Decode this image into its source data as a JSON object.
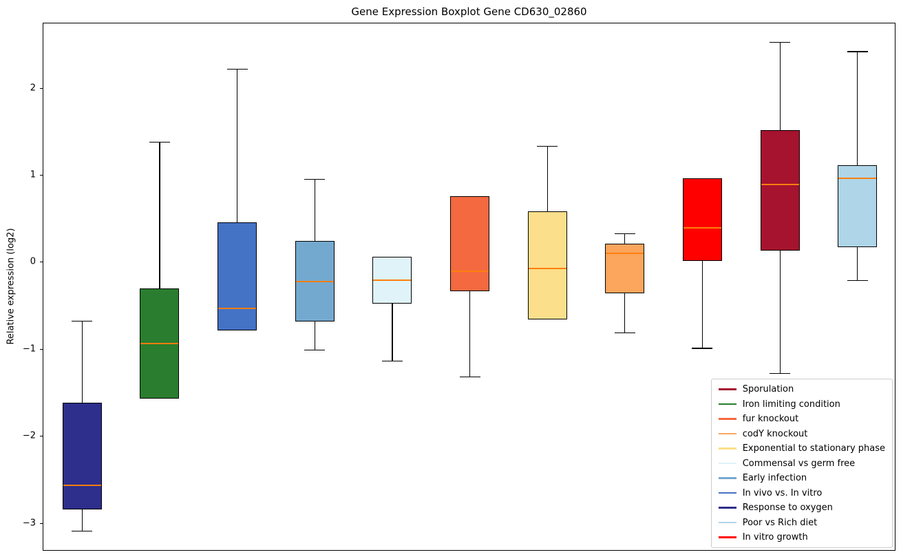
{
  "chart_data": {
    "type": "boxplot",
    "title": "Gene Expression Boxplot Gene CD630_02860",
    "xlabel": "",
    "ylabel": "Relative expression (log2)",
    "ylim": [
      -3.32,
      2.75
    ],
    "grid": false,
    "legend_position": "lower right",
    "median_color": "#ff7f0e",
    "yticks": [
      {
        "value": -3,
        "label": "−3"
      },
      {
        "value": -2,
        "label": "−2"
      },
      {
        "value": -1,
        "label": "−1"
      },
      {
        "value": 0,
        "label": "0"
      },
      {
        "value": 1,
        "label": "1"
      },
      {
        "value": 2,
        "label": "2"
      }
    ],
    "boxes": [
      {
        "label": "Response to oxygen",
        "color": "#2e2e8c",
        "whisker_low": -3.08,
        "q1": -2.84,
        "median": -2.56,
        "q3": -1.61,
        "whisker_high": -0.67
      },
      {
        "label": "Iron limiting condition",
        "color": "#2a7d2e",
        "whisker_low": -1.56,
        "q1": -1.56,
        "median": -0.93,
        "q3": -0.3,
        "whisker_high": 1.39
      },
      {
        "label": "In vivo vs. In vitro",
        "color": "#4472c4",
        "whisker_low": -0.78,
        "q1": -0.78,
        "median": -0.53,
        "q3": 0.46,
        "whisker_high": 2.23
      },
      {
        "label": "Early infection",
        "color": "#74a9cf",
        "whisker_low": -1.0,
        "q1": -0.68,
        "median": -0.22,
        "q3": 0.25,
        "whisker_high": 0.96
      },
      {
        "label": "Commensal vs germ free",
        "color": "#dff3f8",
        "whisker_low": -1.13,
        "q1": -0.47,
        "median": -0.2,
        "q3": 0.07,
        "whisker_high": 0.07
      },
      {
        "label": "fur knockout",
        "color": "#f4693f",
        "whisker_low": -1.31,
        "q1": -0.33,
        "median": -0.1,
        "q3": 0.76,
        "whisker_high": 0.76
      },
      {
        "label": "Exponential to stationary phase",
        "color": "#fcdf8b",
        "whisker_low": -0.65,
        "q1": -0.65,
        "median": -0.07,
        "q3": 0.59,
        "whisker_high": 1.34
      },
      {
        "label": "codY knockout",
        "color": "#fba55d",
        "whisker_low": -0.8,
        "q1": -0.35,
        "median": 0.11,
        "q3": 0.22,
        "whisker_high": 0.34
      },
      {
        "label": "In vitro growth",
        "color": "#ff0000",
        "whisker_low": -0.98,
        "q1": 0.02,
        "median": 0.4,
        "q3": 0.97,
        "whisker_high": 0.97
      },
      {
        "label": "Sporulation",
        "color": "#a5132e",
        "whisker_low": -1.27,
        "q1": 0.14,
        "median": 0.9,
        "q3": 1.52,
        "whisker_high": 2.54
      },
      {
        "label": "Poor vs Rich diet",
        "color": "#aed6e8",
        "whisker_low": -0.2,
        "q1": 0.18,
        "median": 0.97,
        "q3": 1.12,
        "whisker_high": 2.43
      }
    ],
    "legend": [
      {
        "label": "Sporulation",
        "color": "#a5132e"
      },
      {
        "label": "Iron limiting condition",
        "color": "#2a7d2e"
      },
      {
        "label": "fur knockout",
        "color": "#f4693f"
      },
      {
        "label": "codY knockout",
        "color": "#fba55d"
      },
      {
        "label": "Exponential to stationary phase",
        "color": "#fcdf8b"
      },
      {
        "label": "Commensal vs germ free",
        "color": "#dff3f8"
      },
      {
        "label": "Early infection",
        "color": "#74a9cf"
      },
      {
        "label": "In vivo vs. In vitro",
        "color": "#4472c4"
      },
      {
        "label": "Response to oxygen",
        "color": "#2e2e8c"
      },
      {
        "label": "Poor vs Rich diet",
        "color": "#aed6e8"
      },
      {
        "label": "In vitro growth",
        "color": "#ff0000"
      }
    ]
  }
}
